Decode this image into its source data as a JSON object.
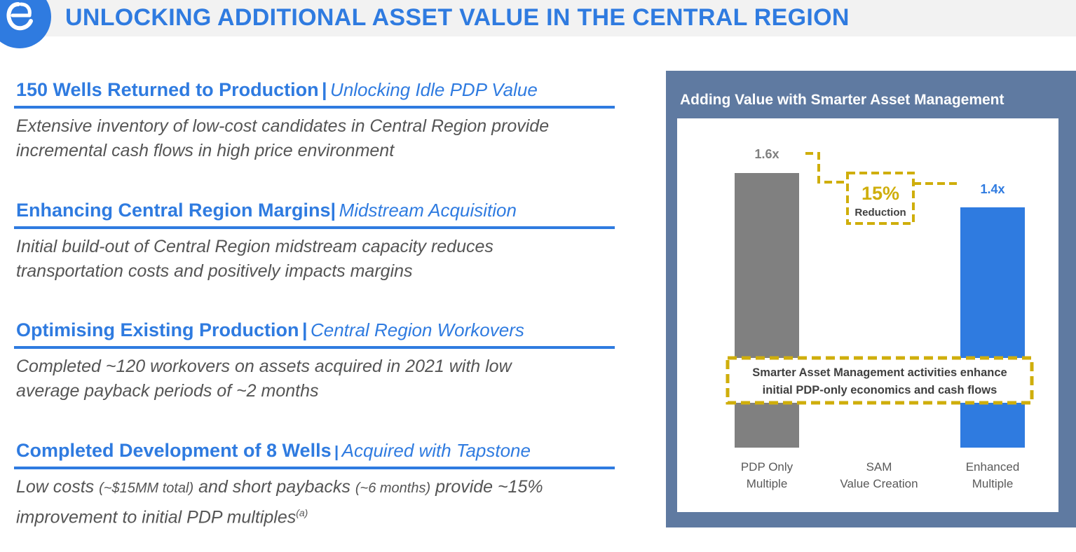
{
  "header": {
    "title": "UNLOCKING ADDITIONAL ASSET VALUE IN THE CENTRAL REGION",
    "logo_icon": "company-logo-icon"
  },
  "sections": [
    {
      "title": "150 Wells Returned to Production",
      "separator": "|",
      "subtitle": "Unlocking Idle PDP Value",
      "body_lines": [
        "Extensive inventory of low-cost candidates in Central Region provide",
        "incremental cash flows in high price environment"
      ]
    },
    {
      "title": "Enhancing Central Region Margins",
      "separator": "|",
      "subtitle": "Midstream Acquisition",
      "body_lines": [
        "Initial build-out of Central Region midstream capacity reduces",
        "transportation costs and positively impacts margins"
      ]
    },
    {
      "title": "Optimising Existing Production",
      "separator": "|",
      "subtitle": "Central Region Workovers",
      "body_lines": [
        "Completed ~120 workovers on assets acquired in 2021 with low",
        "average payback periods of ~2 months"
      ]
    },
    {
      "title": "Completed Development of 8 Wells",
      "separator": "|",
      "subtitle": "Acquired with Tapstone",
      "body_rich": {
        "a": "Low costs ",
        "b": "(~$15MM total)",
        "c": " and short paybacks ",
        "d": "(~6 months)",
        "e": " provide ~15%",
        "f": "improvement to initial PDP multiples",
        "g": "(a)"
      }
    }
  ],
  "chart_data": {
    "type": "bar",
    "title": "Adding Value with Smarter Asset Management",
    "categories": [
      [
        "PDP Only",
        "Multiple"
      ],
      [
        "SAM",
        "Value Creation"
      ],
      [
        "Enhanced",
        "Multiple"
      ]
    ],
    "values": [
      1.6,
      null,
      1.4
    ],
    "data_labels": [
      "1.6x",
      "",
      "1.4x"
    ],
    "ylim": [
      0,
      1.6
    ],
    "colors": [
      "#808080",
      null,
      "#2f7be0"
    ],
    "annotation_color": "#cfae0b",
    "reduction": {
      "value": "15%",
      "label": "Reduction"
    },
    "callout_lines": [
      "Smarter Asset Management activities enhance",
      "initial PDP-only economics and cash flows"
    ]
  }
}
